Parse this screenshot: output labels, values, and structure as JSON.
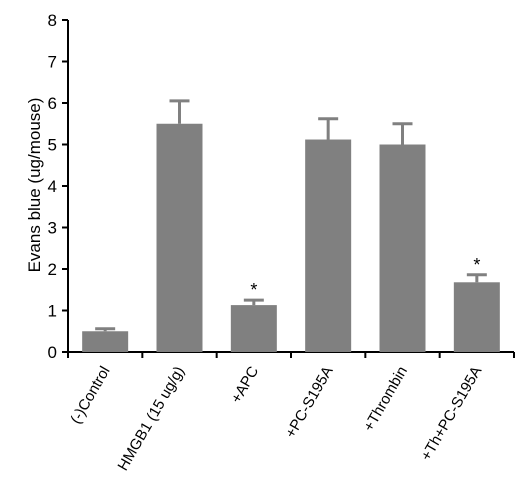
{
  "chart_data": {
    "type": "bar",
    "ylabel": "Evans blue (ug/mouse)",
    "xlabel": "",
    "ylim": [
      0,
      8
    ],
    "yticks": [
      0,
      1,
      2,
      3,
      4,
      5,
      6,
      7,
      8
    ],
    "categories": [
      "(-)Control",
      "HMGB1 (15 ug/g)",
      "+APC",
      "+PC-S195A",
      "+Thrombin",
      "+Th+PC-S195A"
    ],
    "values": [
      0.5,
      5.5,
      1.13,
      5.12,
      5.0,
      1.68
    ],
    "errors": [
      0.06,
      0.55,
      0.12,
      0.5,
      0.5,
      0.18
    ],
    "significance": [
      "",
      "",
      "*",
      "",
      "",
      "*"
    ],
    "bar_color": "#808080"
  }
}
